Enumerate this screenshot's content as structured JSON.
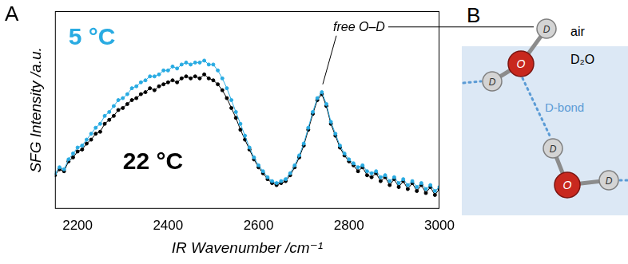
{
  "chart_data": {
    "type": "line",
    "panel_label": "A",
    "x_label": "IR Wavenumber /cm⁻¹",
    "y_label": "SFG Intensity /a.u.",
    "x": [
      2150,
      2160,
      2170,
      2180,
      2190,
      2200,
      2210,
      2220,
      2230,
      2240,
      2250,
      2260,
      2270,
      2280,
      2290,
      2300,
      2310,
      2320,
      2330,
      2340,
      2350,
      2360,
      2370,
      2380,
      2390,
      2400,
      2410,
      2420,
      2430,
      2440,
      2450,
      2460,
      2470,
      2480,
      2490,
      2500,
      2510,
      2520,
      2530,
      2540,
      2550,
      2560,
      2570,
      2580,
      2590,
      2600,
      2610,
      2620,
      2630,
      2640,
      2650,
      2660,
      2670,
      2680,
      2690,
      2700,
      2710,
      2720,
      2730,
      2740,
      2750,
      2760,
      2770,
      2780,
      2790,
      2800,
      2810,
      2820,
      2830,
      2840,
      2850,
      2860,
      2870,
      2880,
      2890,
      2900,
      2910,
      2920,
      2930,
      2940,
      2950,
      2960,
      2970,
      2980,
      2990,
      3000
    ],
    "series": [
      {
        "name": "5 °C",
        "color": "#29abe2",
        "marker": "circle",
        "line_style": "solid",
        "values": [
          0.18,
          0.21,
          0.2,
          0.25,
          0.28,
          0.31,
          0.32,
          0.35,
          0.38,
          0.41,
          0.43,
          0.47,
          0.49,
          0.52,
          0.55,
          0.56,
          0.58,
          0.61,
          0.62,
          0.64,
          0.65,
          0.67,
          0.67,
          0.68,
          0.7,
          0.7,
          0.72,
          0.71,
          0.73,
          0.74,
          0.73,
          0.74,
          0.74,
          0.75,
          0.73,
          0.73,
          0.7,
          0.66,
          0.61,
          0.55,
          0.49,
          0.43,
          0.37,
          0.31,
          0.26,
          0.22,
          0.19,
          0.16,
          0.14,
          0.13,
          0.14,
          0.15,
          0.18,
          0.22,
          0.27,
          0.33,
          0.41,
          0.49,
          0.56,
          0.59,
          0.53,
          0.44,
          0.38,
          0.32,
          0.28,
          0.25,
          0.23,
          0.21,
          0.22,
          0.19,
          0.18,
          0.19,
          0.16,
          0.17,
          0.14,
          0.16,
          0.13,
          0.15,
          0.12,
          0.14,
          0.11,
          0.13,
          0.1,
          0.12,
          0.09,
          0.11
        ]
      },
      {
        "name": "22 °C",
        "color": "#000000",
        "marker": "circle",
        "line_style": "solid",
        "values": [
          0.17,
          0.2,
          0.19,
          0.24,
          0.26,
          0.29,
          0.3,
          0.33,
          0.35,
          0.38,
          0.39,
          0.43,
          0.45,
          0.47,
          0.5,
          0.51,
          0.53,
          0.55,
          0.56,
          0.58,
          0.59,
          0.61,
          0.6,
          0.62,
          0.63,
          0.64,
          0.65,
          0.64,
          0.66,
          0.67,
          0.66,
          0.67,
          0.66,
          0.68,
          0.66,
          0.65,
          0.63,
          0.6,
          0.56,
          0.51,
          0.46,
          0.4,
          0.35,
          0.3,
          0.25,
          0.21,
          0.18,
          0.15,
          0.13,
          0.12,
          0.13,
          0.14,
          0.17,
          0.21,
          0.26,
          0.32,
          0.4,
          0.48,
          0.55,
          0.58,
          0.52,
          0.43,
          0.37,
          0.31,
          0.27,
          0.24,
          0.22,
          0.19,
          0.21,
          0.17,
          0.16,
          0.18,
          0.14,
          0.16,
          0.12,
          0.15,
          0.11,
          0.14,
          0.1,
          0.13,
          0.09,
          0.12,
          0.08,
          0.11,
          0.07,
          0.1
        ]
      }
    ],
    "xlim": [
      2150,
      3000
    ],
    "xticks": [
      2200,
      2400,
      2600,
      2800,
      3000
    ],
    "ylim": [
      0,
      1
    ],
    "tick_labels": "x",
    "grid": false,
    "annotations": [
      {
        "text": "5 °C",
        "color": "#29abe2"
      },
      {
        "text": "22 °C",
        "color": "#000000"
      },
      {
        "text": "free O–D",
        "color": "#000000"
      }
    ]
  },
  "diagram": {
    "label": "B",
    "top_phase": "air",
    "bottom_phase": "D₂O",
    "bond_label": "D-bond",
    "molecules": [
      {
        "atoms": [
          "D",
          "O",
          "D"
        ]
      },
      {
        "atoms": [
          "D",
          "O",
          "D"
        ]
      }
    ]
  }
}
